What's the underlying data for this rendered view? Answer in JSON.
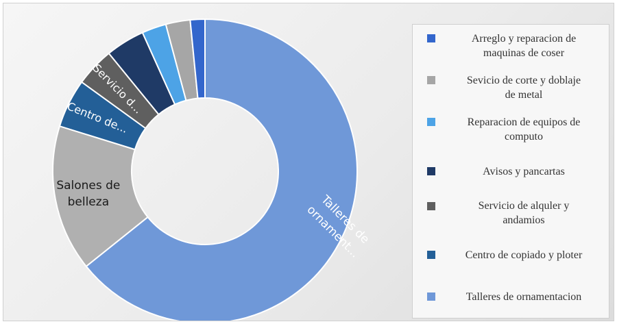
{
  "chart_data": {
    "type": "pie",
    "variant": "donut",
    "title": "",
    "categories": [
      "Talleres  de ornamentacion",
      "Salones de belleza",
      "Centro de copiado y ploter",
      "Servicio de alquler y andamios",
      "Avisos y pancartas",
      "Reparacion de equipos de computo",
      "Sevicio de corte y doblaje de metal",
      "Arreglo y reparacion de maquinas de coser"
    ],
    "values": [
      62.0,
      15.0,
      5.0,
      4.0,
      4.0,
      2.5,
      2.5,
      1.5
    ],
    "colors": [
      "#6f98d8",
      "#b0b0b0",
      "#235f97",
      "#5f5f5f",
      "#1f3a66",
      "#4da3e6",
      "#a6a6a6",
      "#3366cc"
    ],
    "slice_labels": [
      {
        "lines": [
          "Talleres  de",
          "ornament..."
        ],
        "color": "#ffffff"
      },
      {
        "lines": [
          "Salones de",
          "belleza"
        ],
        "color": "#1a1a1a"
      },
      {
        "lines": [
          "Centro de..."
        ],
        "color": "#ffffff"
      },
      {
        "lines": [
          "Servicio d..."
        ],
        "color": "#ffffff"
      },
      null,
      null,
      null,
      null
    ],
    "legend": {
      "position": "right",
      "items": [
        {
          "lines": [
            "Arreglo y reparacion de",
            "maquinas de coser"
          ],
          "color": "#3366cc"
        },
        {
          "lines": [
            "Sevicio de corte y doblaje",
            "de metal"
          ],
          "color": "#a6a6a6"
        },
        {
          "lines": [
            "Reparacion de equipos de",
            "computo"
          ],
          "color": "#4da3e6"
        },
        {
          "lines": [
            "Avisos y pancartas"
          ],
          "color": "#1f3a66"
        },
        {
          "lines": [
            "Servicio de alquler y",
            "andamios"
          ],
          "color": "#5f5f5f"
        },
        {
          "lines": [
            "Centro de copiado y ploter"
          ],
          "color": "#235f97"
        },
        {
          "lines": [
            "Talleres  de ornamentacion"
          ],
          "color": "#6f98d8"
        }
      ]
    }
  }
}
